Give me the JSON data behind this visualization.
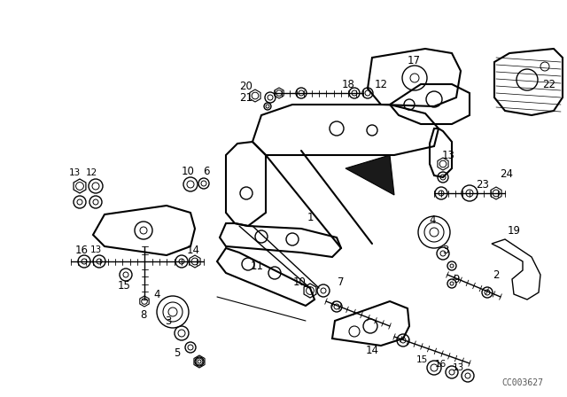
{
  "bg_color": "#ffffff",
  "watermark": "CC003627",
  "line_color": "#000000",
  "label_fontsize": 8.5,
  "small_fontsize": 7.5,
  "fig_width": 6.4,
  "fig_height": 4.48,
  "dpi": 100
}
